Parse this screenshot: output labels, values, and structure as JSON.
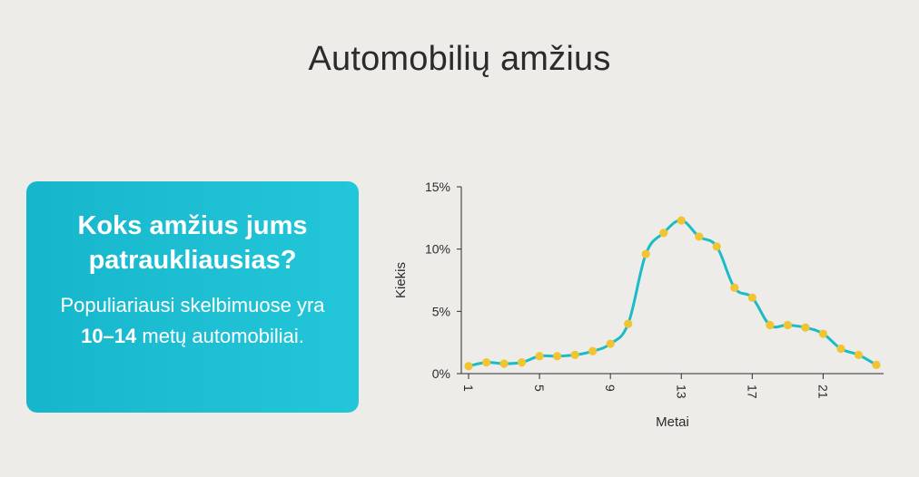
{
  "page": {
    "title": "Automobilių amžius"
  },
  "card": {
    "heading": "Koks amžius jums patraukliausias?",
    "body_prefix": "Populiariausi skelbimuose yra ",
    "body_highlight": "10–14",
    "body_suffix": " metų automobiliai."
  },
  "colors": {
    "background": "#edece8",
    "card": "#1fbfd3",
    "line": "#1bbcc7",
    "marker": "#f1c532",
    "text": "#2b2b2b"
  },
  "chart_data": {
    "type": "line",
    "title": "",
    "xlabel": "Metai",
    "ylabel": "Kiekis",
    "x": [
      1,
      2,
      3,
      4,
      5,
      6,
      7,
      8,
      9,
      10,
      11,
      12,
      13,
      14,
      15,
      16,
      17,
      18,
      19,
      20,
      21,
      22,
      23,
      24
    ],
    "series": [
      {
        "values": [
          0.6,
          0.9,
          0.8,
          0.9,
          1.4,
          1.4,
          1.5,
          1.8,
          2.4,
          4.0,
          9.6,
          11.3,
          12.3,
          11.0,
          10.2,
          6.9,
          6.1,
          3.9,
          3.9,
          3.7,
          3.2,
          2.0,
          1.5,
          0.7
        ]
      }
    ],
    "xticks": [
      1,
      5,
      9,
      13,
      17,
      21
    ],
    "xtick_labels": [
      "1",
      "5",
      "9",
      "13",
      "17",
      "21"
    ],
    "yticks": [
      0,
      5,
      10,
      15
    ],
    "ytick_labels": [
      "0%",
      "5%",
      "10%",
      "15%"
    ],
    "ylim": [
      0,
      15
    ],
    "xlim": [
      1,
      24
    ],
    "grid": false,
    "legend": "none",
    "smooth": true,
    "markers": true
  }
}
